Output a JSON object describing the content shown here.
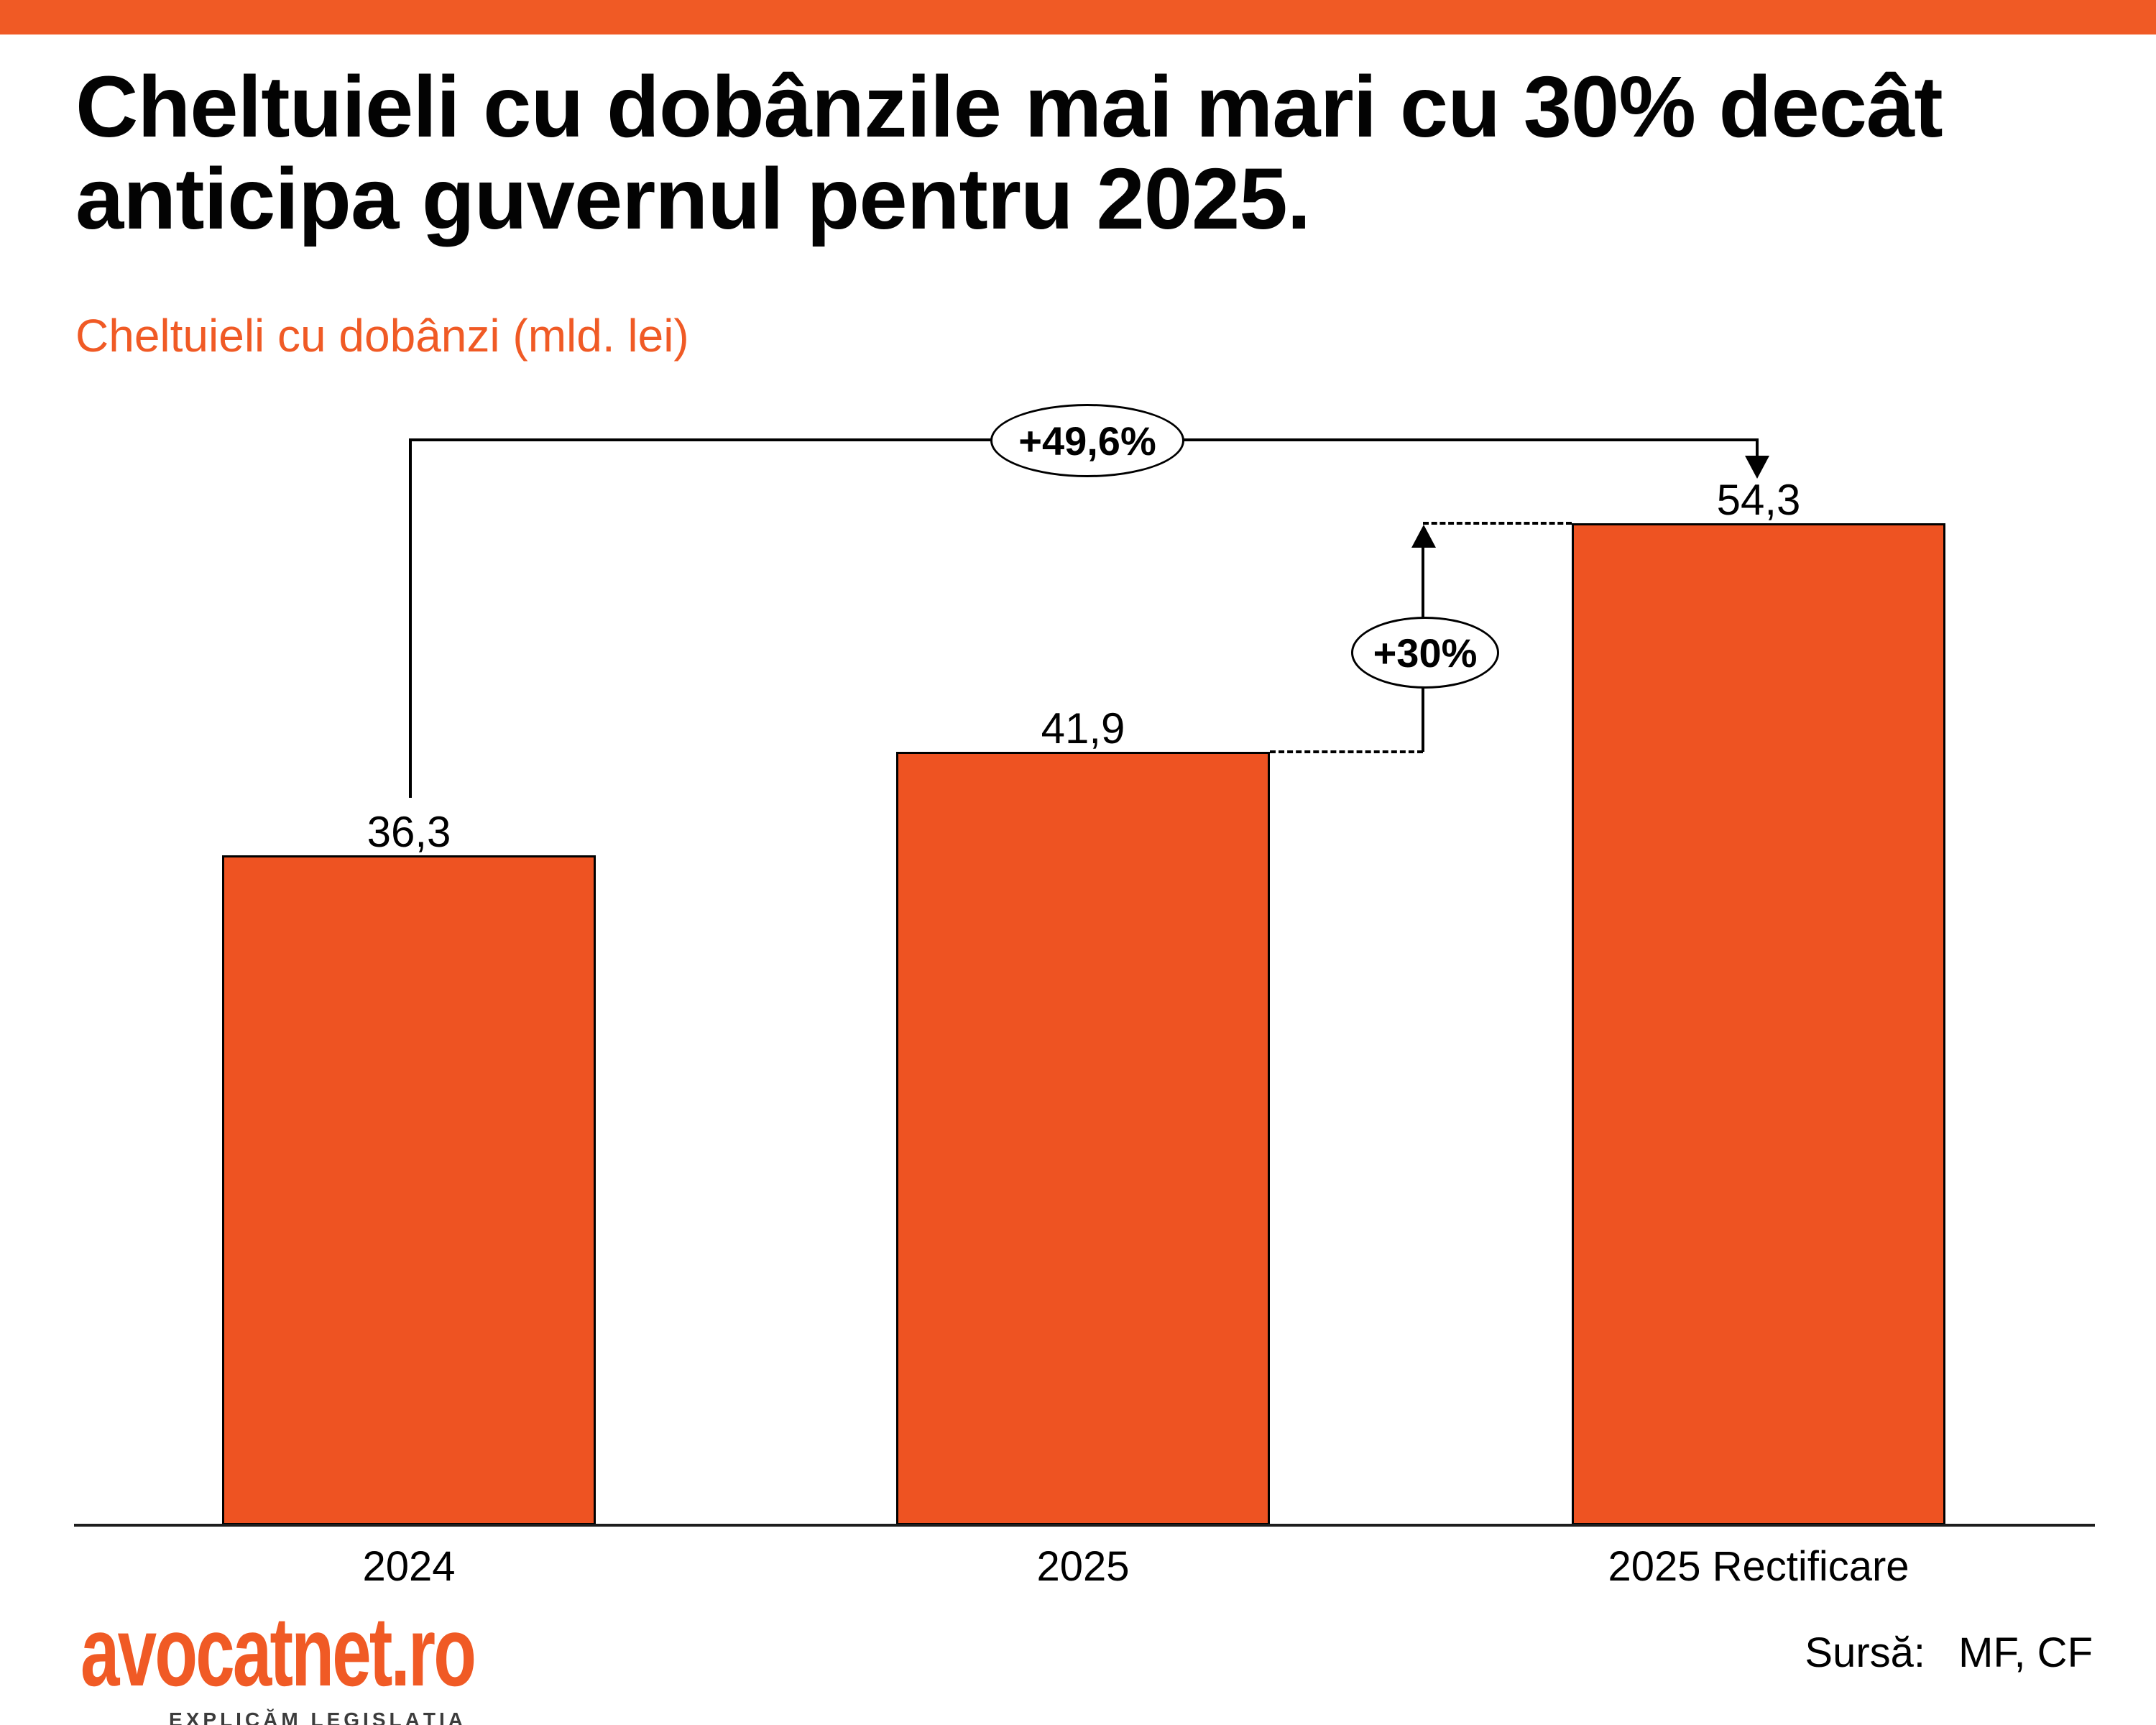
{
  "page": {
    "accent_color": "#F05A25",
    "background_color": "#ffffff"
  },
  "header": {
    "title": "Cheltuieli cu dobânzile mai mari cu 30% decât\nanticipa guvernul pentru 2025.",
    "subtitle": "Cheltuieli cu dobânzi (mld. lei)"
  },
  "chart_data": {
    "type": "bar",
    "orientation": "vertical",
    "categories": [
      "2024",
      "2025",
      "2025 Rectificare"
    ],
    "values": [
      36.3,
      41.9,
      54.3
    ],
    "value_labels": [
      "36,3",
      "41,9",
      "54,3"
    ],
    "unit": "mld. lei",
    "title": "Cheltuieli cu dobânzi (mld. lei)",
    "xlabel": "",
    "ylabel": "",
    "ylim": [
      0,
      60
    ],
    "grid": false,
    "y_axis_visible": false,
    "bar_color": "#EE5322",
    "bar_border_color": "#000000",
    "annotations": [
      {
        "label": "+49,6%",
        "from": "2024",
        "to": "2025 Rectificare",
        "shape": "ellipse"
      },
      {
        "label": "+30%",
        "from": "2025",
        "to": "2025 Rectificare",
        "shape": "ellipse"
      }
    ]
  },
  "footer": {
    "logo_text": "avocatnet.ro",
    "logo_tagline": "EXPLICĂM LEGISLAȚIA",
    "source_label": "Sursă: ",
    "source_value": "MF, CF"
  }
}
